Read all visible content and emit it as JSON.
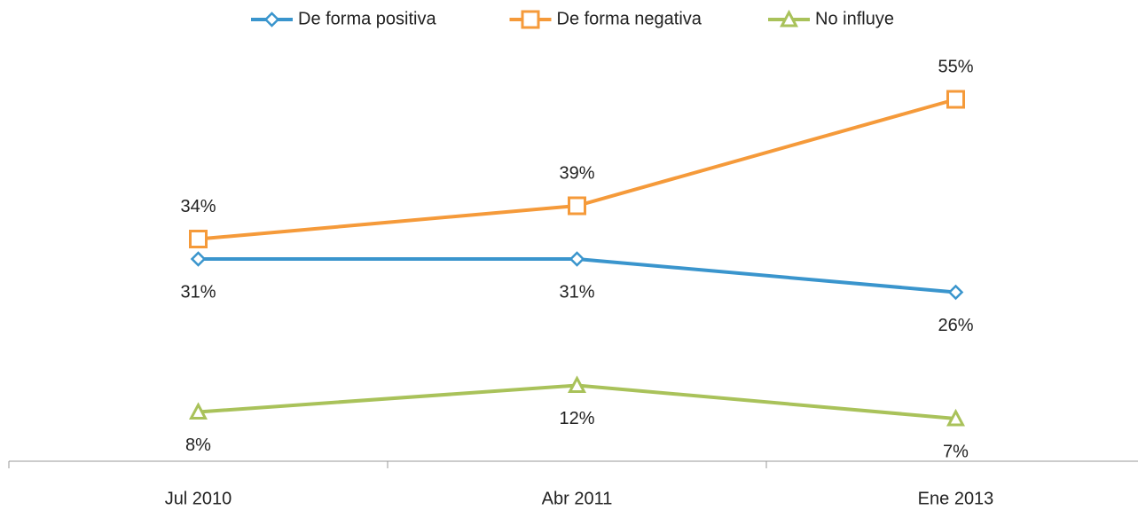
{
  "chart_data": {
    "type": "line",
    "categories": [
      "Jul 2010",
      "Abr 2011",
      "Ene 2013"
    ],
    "series": [
      {
        "name": "De forma positiva",
        "color": "#3a95cd",
        "marker": "diamond",
        "values": [
          31,
          31,
          26
        ],
        "value_labels": [
          "31%",
          "31%",
          "26%"
        ]
      },
      {
        "name": "De forma negativa",
        "color": "#f59a3a",
        "marker": "square",
        "values": [
          34,
          39,
          55
        ],
        "value_labels": [
          "34%",
          "39%",
          "55%"
        ]
      },
      {
        "name": "No influye",
        "color": "#a9c25a",
        "marker": "triangle",
        "values": [
          8,
          12,
          7
        ],
        "value_labels": [
          "8%",
          "12%",
          "7%"
        ]
      }
    ],
    "ylim": [
      0,
      60
    ],
    "legend": "top"
  }
}
